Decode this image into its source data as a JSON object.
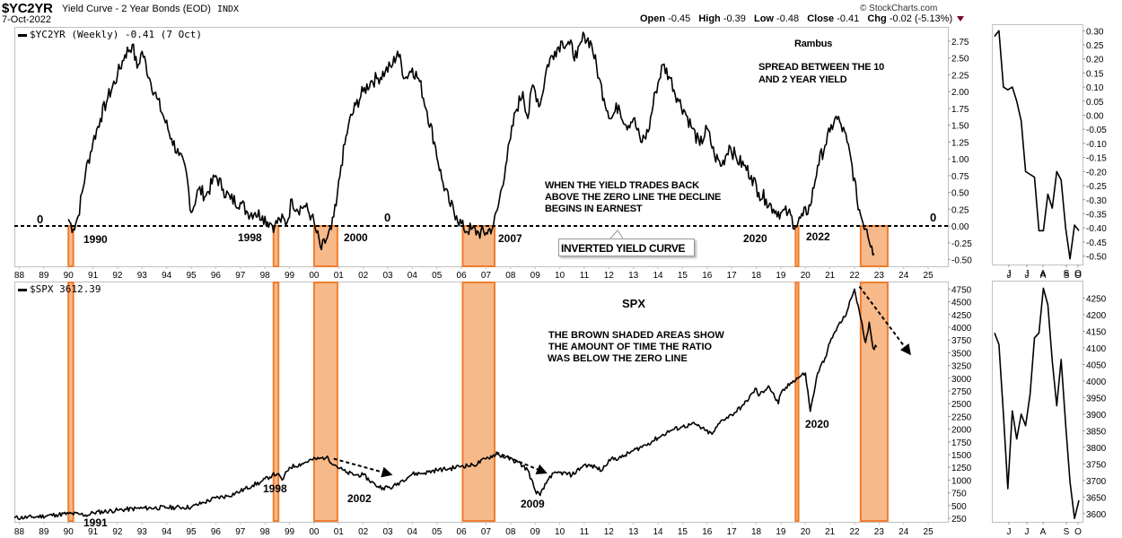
{
  "header": {
    "symbol": "$YC2YR",
    "name": "Yield Curve - 2 Year Bonds (EOD)",
    "exchange": "INDX",
    "date": "7-Oct-2022",
    "copyright": "© StockCharts.com",
    "ohlc": {
      "open_label": "Open",
      "open": "-0.45",
      "high_label": "High",
      "high": "-0.39",
      "low_label": "Low",
      "low": "-0.48",
      "close_label": "Close",
      "close": "-0.41",
      "chg_label": "Chg",
      "chg": "-0.02 (-5.13%)",
      "direction": "down"
    }
  },
  "colors": {
    "shade_fill": "#f6b98a",
    "shade_stroke": "#f07d2e",
    "line": "#000000",
    "grid_border": "#c0c0c0",
    "down_arrow": "#7a0a2a"
  },
  "chart_data": [
    {
      "id": "yield-curve",
      "type": "line",
      "title": "$YC2YR (Weekly) -0.41 (7 Oct)",
      "legend": "$YC2YR (Weekly) -0.41 (7 Oct)",
      "xlabel": "",
      "ylabel": "",
      "ylim": [
        -0.6,
        2.95
      ],
      "yticks": [
        2.75,
        2.5,
        2.25,
        2.0,
        1.75,
        1.5,
        1.25,
        1.0,
        0.75,
        0.5,
        0.25,
        0.0,
        -0.25,
        -0.5
      ],
      "ytick_labels": [
        "2.75",
        "2.50",
        "2.25",
        "2.00",
        "1.75",
        "1.50",
        "1.25",
        "1.00",
        "0.75",
        "0.50",
        "0.25",
        "0.00",
        "-0.25",
        "-0.50"
      ],
      "xlim": [
        1987.8,
        2025.8
      ],
      "xtick_labels": [
        "88",
        "89",
        "90",
        "91",
        "92",
        "93",
        "94",
        "95",
        "96",
        "97",
        "98",
        "99",
        "00",
        "01",
        "02",
        "03",
        "04",
        "05",
        "06",
        "07",
        "08",
        "09",
        "10",
        "11",
        "12",
        "13",
        "14",
        "15",
        "16",
        "17",
        "18",
        "19",
        "20",
        "21",
        "22",
        "23",
        "24",
        "25"
      ],
      "zero_line": 0,
      "x": [
        1990.0,
        1990.2,
        1990.4,
        1990.7,
        1991.0,
        1991.3,
        1991.6,
        1992.0,
        1992.3,
        1992.6,
        1992.8,
        1993.0,
        1993.3,
        1993.6,
        1993.9,
        1994.2,
        1994.5,
        1994.8,
        1995.0,
        1995.3,
        1995.6,
        1996.0,
        1996.3,
        1996.6,
        1997.0,
        1997.3,
        1997.6,
        1997.9,
        1998.2,
        1998.4,
        1998.6,
        1998.9,
        1999.1,
        1999.3,
        1999.6,
        1999.9,
        2000.1,
        2000.3,
        2000.5,
        2000.7,
        2000.9,
        2001.1,
        2001.4,
        2001.7,
        2002.0,
        2002.3,
        2002.6,
        2002.9,
        2003.2,
        2003.4,
        2003.7,
        2004.0,
        2004.3,
        2004.6,
        2004.9,
        2005.2,
        2005.5,
        2005.8,
        2006.1,
        2006.4,
        2006.7,
        2007.0,
        2007.3,
        2007.5,
        2007.8,
        2008.0,
        2008.2,
        2008.5,
        2008.7,
        2008.9,
        2009.2,
        2009.5,
        2009.8,
        2010.1,
        2010.4,
        2010.7,
        2011.0,
        2011.3,
        2011.6,
        2011.8,
        2012.1,
        2012.4,
        2012.7,
        2013.0,
        2013.3,
        2013.6,
        2013.9,
        2014.2,
        2014.5,
        2014.8,
        2015.1,
        2015.4,
        2015.7,
        2016.0,
        2016.3,
        2016.6,
        2016.9,
        2017.2,
        2017.5,
        2017.8,
        2018.1,
        2018.4,
        2018.7,
        2019.0,
        2019.3,
        2019.6,
        2019.9,
        2020.2,
        2020.5,
        2020.8,
        2021.0,
        2021.2,
        2021.4,
        2021.7,
        2021.9,
        2022.1,
        2022.3,
        2022.5,
        2022.7,
        2022.8
      ],
      "y": [
        0.1,
        -0.05,
        0.15,
        0.8,
        1.25,
        1.6,
        1.9,
        2.25,
        2.55,
        2.7,
        2.35,
        2.6,
        2.2,
        1.9,
        1.6,
        1.3,
        1.05,
        0.8,
        0.2,
        0.55,
        0.45,
        0.75,
        0.55,
        0.4,
        0.35,
        0.2,
        0.2,
        0.15,
        0.05,
        0.0,
        0.1,
        0.05,
        0.4,
        0.25,
        0.3,
        0.15,
        -0.1,
        -0.35,
        -0.2,
        -0.05,
        0.3,
        0.9,
        1.5,
        1.8,
        2.0,
        2.15,
        2.2,
        2.3,
        2.4,
        2.6,
        2.2,
        2.35,
        2.15,
        1.7,
        1.25,
        0.7,
        0.35,
        0.15,
        -0.05,
        -0.05,
        -0.1,
        -0.1,
        0.0,
        0.3,
        0.9,
        1.3,
        1.7,
        2.0,
        1.6,
        2.1,
        1.8,
        2.4,
        2.6,
        2.75,
        2.7,
        2.5,
        2.85,
        2.7,
        2.2,
        1.9,
        1.6,
        1.8,
        1.5,
        1.6,
        1.25,
        1.4,
        2.0,
        2.4,
        2.2,
        1.9,
        1.7,
        1.45,
        1.2,
        1.45,
        1.05,
        0.9,
        1.2,
        1.0,
        0.9,
        0.75,
        0.5,
        0.4,
        0.25,
        0.2,
        0.2,
        0.0,
        0.15,
        0.3,
        0.9,
        1.2,
        1.4,
        1.6,
        1.55,
        1.25,
        0.9,
        0.4,
        0.1,
        -0.05,
        -0.3,
        -0.41
      ],
      "shaded_periods": [
        [
          1990.0,
          1990.2
        ],
        [
          1998.35,
          1998.55
        ],
        [
          2000.0,
          2000.95
        ],
        [
          2006.05,
          2007.35
        ],
        [
          2019.6,
          2019.72
        ],
        [
          2022.25,
          2023.35
        ]
      ],
      "annotations": {
        "rambus": "Rambus",
        "spread": [
          "SPREAD BETWEEN THE 10",
          "AND 2 YEAR YIELD"
        ],
        "when_yield": [
          "WHEN THE YIELD TRADES BACK",
          "ABOVE THE ZERO LINE THE DECLINE",
          "BEGINS IN EARNEST"
        ],
        "inverted": "INVERTED YIELD CURVE",
        "zero_labels": [
          "0",
          "0",
          "0"
        ],
        "years": [
          "1990",
          "1998",
          "2000",
          "2007",
          "2020",
          "2022"
        ]
      }
    },
    {
      "id": "spx",
      "type": "line",
      "title": "SPX",
      "legend": "$SPX 3612.39",
      "xlabel": "",
      "ylabel": "",
      "ylim": [
        180,
        4880
      ],
      "yticks": [
        4750,
        4500,
        4250,
        4000,
        3750,
        3500,
        3250,
        3000,
        2750,
        2500,
        2250,
        2000,
        1750,
        1500,
        1250,
        1000,
        750,
        500,
        250
      ],
      "ytick_labels": [
        "4750",
        "4500",
        "4250",
        "4000",
        "3750",
        "3500",
        "3250",
        "3000",
        "2750",
        "2500",
        "2250",
        "2000",
        "1750",
        "1500",
        "1250",
        "1000",
        "750",
        "500",
        "250"
      ],
      "xlim": [
        1987.8,
        2025.8
      ],
      "xtick_labels": [
        "88",
        "89",
        "90",
        "91",
        "92",
        "93",
        "94",
        "95",
        "96",
        "97",
        "98",
        "99",
        "00",
        "01",
        "02",
        "03",
        "04",
        "05",
        "06",
        "07",
        "08",
        "09",
        "10",
        "11",
        "12",
        "13",
        "14",
        "15",
        "16",
        "17",
        "18",
        "19",
        "20",
        "21",
        "22",
        "23",
        "24",
        "25"
      ],
      "x": [
        1987.8,
        1988.5,
        1989.5,
        1990.0,
        1990.5,
        1990.8,
        1991.0,
        1992.0,
        1993.0,
        1994.0,
        1995.0,
        1995.5,
        1996.0,
        1996.5,
        1997.0,
        1997.5,
        1997.8,
        1998.3,
        1998.5,
        1998.7,
        1999.0,
        1999.5,
        1999.9,
        2000.2,
        2000.5,
        2000.9,
        2001.3,
        2001.7,
        2002.0,
        2002.5,
        2002.8,
        2003.2,
        2003.6,
        2004.0,
        2004.5,
        2005.0,
        2005.5,
        2006.0,
        2006.5,
        2007.0,
        2007.4,
        2007.8,
        2008.3,
        2008.7,
        2009.0,
        2009.2,
        2009.6,
        2010.0,
        2010.5,
        2011.0,
        2011.5,
        2011.7,
        2012.0,
        2012.5,
        2013.0,
        2013.5,
        2014.0,
        2014.5,
        2015.0,
        2015.5,
        2015.9,
        2016.2,
        2016.6,
        2017.0,
        2017.5,
        2018.0,
        2018.1,
        2018.5,
        2018.9,
        2019.0,
        2019.5,
        2020.0,
        2020.2,
        2020.5,
        2020.8,
        2021.0,
        2021.3,
        2021.6,
        2021.9,
        2022.0,
        2022.2,
        2022.45,
        2022.6,
        2022.75,
        2022.9
      ],
      "y": [
        260,
        270,
        320,
        340,
        330,
        310,
        360,
        410,
        450,
        460,
        470,
        560,
        650,
        690,
        780,
        900,
        950,
        1100,
        1120,
        1000,
        1250,
        1320,
        1400,
        1420,
        1450,
        1280,
        1150,
        1100,
        1100,
        900,
        850,
        860,
        1000,
        1120,
        1140,
        1200,
        1220,
        1280,
        1290,
        1420,
        1510,
        1450,
        1350,
        1200,
        800,
        700,
        1080,
        1150,
        1100,
        1300,
        1250,
        1180,
        1400,
        1440,
        1580,
        1690,
        1830,
        1970,
        2050,
        2100,
        1980,
        1900,
        2180,
        2280,
        2480,
        2800,
        2650,
        2850,
        2500,
        2700,
        2950,
        3100,
        2350,
        3100,
        3400,
        3700,
        4000,
        4200,
        4600,
        4750,
        4300,
        3700,
        4100,
        3600,
        3612
      ],
      "shaded_periods": [
        [
          1990.0,
          1990.2
        ],
        [
          1998.35,
          1998.55
        ],
        [
          2000.0,
          2000.95
        ],
        [
          2006.05,
          2007.35
        ],
        [
          2019.6,
          2019.72
        ],
        [
          2022.25,
          2023.35
        ]
      ],
      "arrows": [
        {
          "from": [
            2000.8,
            1420
          ],
          "to": [
            2003.2,
            1100
          ]
        },
        {
          "from": [
            2007.4,
            1550
          ],
          "to": [
            2009.5,
            1130
          ]
        },
        {
          "from": [
            2022.2,
            4800
          ],
          "to": [
            2024.3,
            3450
          ]
        }
      ],
      "annotations": {
        "brown": [
          "THE BROWN SHADED AREAS SHOW",
          "THE AMOUNT OF TIME THE RATIO",
          "WAS BELOW THE ZERO LINE"
        ],
        "years": [
          "1991",
          "1998",
          "2002",
          "2009",
          "2020"
        ]
      }
    },
    {
      "id": "yield-curve-zoom",
      "type": "line",
      "ylim": [
        -0.53,
        0.32
      ],
      "yticks": [
        0.3,
        0.25,
        0.2,
        0.15,
        0.1,
        0.05,
        0.0,
        -0.05,
        -0.1,
        -0.15,
        -0.2,
        -0.25,
        -0.3,
        -0.35,
        -0.4,
        -0.45,
        -0.5
      ],
      "ytick_labels": [
        "0.30",
        "0.25",
        "0.20",
        "0.15",
        "0.10",
        "0.05",
        "0.00",
        "-0.05",
        "-0.10",
        "-0.15",
        "-0.20",
        "-0.25",
        "-0.30",
        "-0.35",
        "-0.40",
        "-0.45",
        "-0.50"
      ],
      "xtick_labels": [
        "J",
        "J",
        "A",
        "S",
        "O"
      ],
      "y": [
        0.28,
        0.3,
        0.1,
        0.09,
        0.1,
        0.05,
        -0.02,
        -0.2,
        -0.21,
        -0.22,
        -0.41,
        -0.41,
        -0.28,
        -0.33,
        -0.2,
        -0.23,
        -0.4,
        -0.51,
        -0.39,
        -0.41
      ]
    },
    {
      "id": "spx-zoom",
      "type": "line",
      "ylim": [
        3575,
        4300
      ],
      "yticks": [
        4250,
        4200,
        4150,
        4100,
        4050,
        4000,
        3950,
        3900,
        3850,
        3800,
        3750,
        3700,
        3650,
        3600
      ],
      "ytick_labels": [
        "4250",
        "4200",
        "4150",
        "4100",
        "4050",
        "4000",
        "3950",
        "3900",
        "3850",
        "3800",
        "3750",
        "3700",
        "3650",
        "3600"
      ],
      "xtick_labels": [
        "J",
        "J",
        "A",
        "S",
        "O"
      ],
      "y": [
        4145,
        4110,
        3900,
        3675,
        3910,
        3825,
        3900,
        3865,
        3960,
        4130,
        4145,
        4280,
        4230,
        4060,
        3925,
        4065,
        3870,
        3695,
        3585,
        3640
      ]
    }
  ]
}
